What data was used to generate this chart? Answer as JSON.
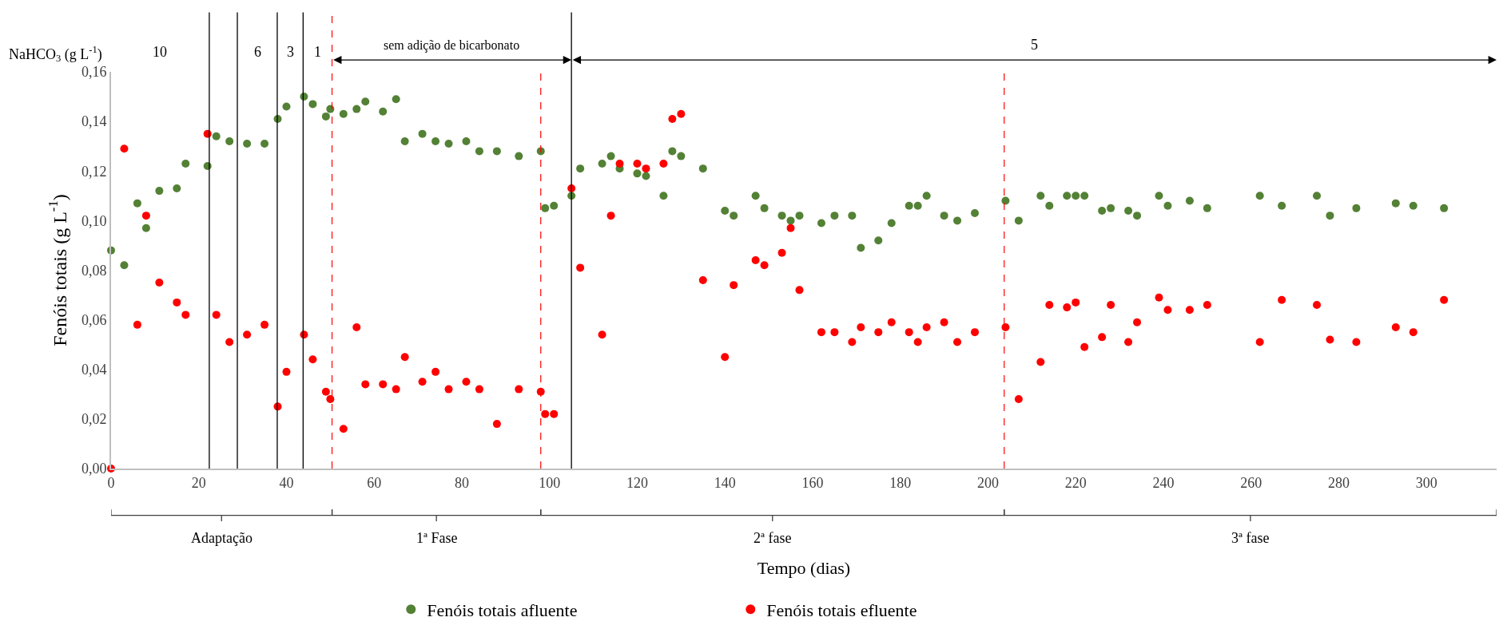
{
  "chart_data": {
    "type": "scatter",
    "xlabel": "Tempo (dias)",
    "ylabel": "Fenóis totais (g L$^{-1}$)",
    "annotations": [
      "NaHCO$_{3}$ (g L$^{-1}$)",
      "10",
      "6",
      "3",
      "1",
      "sem adição de bicarbonato",
      "5",
      "Adaptação",
      "1ª Fase",
      "2ª fase",
      "3ª fase"
    ],
    "x": [
      0,
      3,
      6,
      8,
      11,
      15,
      17,
      22,
      24,
      27,
      31,
      35,
      38,
      40,
      44,
      46,
      49,
      50,
      53,
      56,
      58,
      62,
      65,
      67,
      71,
      74,
      77,
      81,
      84,
      88,
      93,
      98,
      99,
      101,
      105,
      107,
      112,
      114,
      116,
      120,
      122,
      126,
      128,
      130,
      135,
      140,
      142,
      147,
      149,
      153,
      155,
      157,
      162,
      165,
      169,
      171,
      175,
      178,
      182,
      184,
      186,
      190,
      193,
      197,
      204,
      207,
      212,
      214,
      218,
      220,
      222,
      226,
      228,
      232,
      234,
      239,
      241,
      246,
      250,
      262,
      267,
      275,
      278,
      284,
      293,
      297,
      304
    ],
    "series": [
      {
        "name": "Fenóis totais afluente",
        "color": "#538135",
        "values": [
          0.088,
          0.082,
          0.107,
          0.097,
          0.112,
          0.113,
          0.123,
          0.122,
          0.134,
          0.132,
          0.131,
          0.131,
          0.141,
          0.146,
          0.15,
          0.147,
          0.142,
          0.145,
          0.143,
          0.145,
          0.148,
          0.144,
          0.149,
          0.132,
          0.135,
          0.132,
          0.131,
          0.132,
          0.128,
          0.128,
          0.126,
          0.128,
          0.105,
          0.106,
          0.11,
          0.121,
          0.123,
          0.126,
          0.121,
          0.119,
          0.118,
          0.11,
          0.128,
          0.126,
          0.121,
          0.104,
          0.102,
          0.11,
          0.105,
          0.102,
          0.1,
          0.102,
          0.099,
          0.102,
          0.102,
          0.089,
          0.092,
          0.099,
          0.106,
          0.106,
          0.11,
          0.102,
          0.1,
          0.103,
          0.108,
          0.1,
          0.11,
          0.106,
          0.11,
          0.11,
          0.11,
          0.104,
          0.105,
          0.104,
          0.102,
          0.11,
          0.106,
          0.108,
          0.105,
          0.11,
          0.106,
          0.11,
          0.102,
          0.105,
          0.107,
          0.106,
          0.105
        ]
      },
      {
        "name": "Fenóis totais efluente",
        "color": "#ff0000",
        "values": [
          0.0,
          0.129,
          0.058,
          0.102,
          0.075,
          0.067,
          0.062,
          0.135,
          0.062,
          0.051,
          0.054,
          0.058,
          0.025,
          0.039,
          0.054,
          0.044,
          0.031,
          0.028,
          0.016,
          0.057,
          0.034,
          0.034,
          0.032,
          0.045,
          0.035,
          0.039,
          0.032,
          0.035,
          0.032,
          0.018,
          0.032,
          0.031,
          0.022,
          0.022,
          0.113,
          0.081,
          0.054,
          0.102,
          0.123,
          0.123,
          0.121,
          0.123,
          0.141,
          0.143,
          0.076,
          0.045,
          0.074,
          0.084,
          0.082,
          0.087,
          0.097,
          0.072,
          0.055,
          0.055,
          0.051,
          0.057,
          0.055,
          0.059,
          0.055,
          0.051,
          0.057,
          0.059,
          0.051,
          0.055,
          0.057,
          0.028,
          0.043,
          0.066,
          0.065,
          0.067,
          0.049,
          0.053,
          0.066,
          0.051,
          0.059,
          0.069,
          0.064,
          0.064,
          0.066,
          0.051,
          0.068,
          0.066,
          0.052,
          0.051,
          0.057,
          0.055,
          0.068
        ]
      }
    ],
    "xlim": [
      0,
      316
    ],
    "xticks": [
      0,
      20,
      40,
      60,
      80,
      100,
      120,
      140,
      160,
      180,
      200,
      220,
      240,
      260,
      280,
      300
    ],
    "ylim": [
      0,
      0.16
    ],
    "yticks": [
      {
        "value": 0,
        "label": "0,00"
      },
      {
        "value": 0.02,
        "label": "0,02"
      },
      {
        "value": 0.04,
        "label": "0,04"
      },
      {
        "value": 0.06,
        "label": "0,06"
      },
      {
        "value": 0.08,
        "label": "0,08"
      },
      {
        "value": 0.1,
        "label": "0,10"
      },
      {
        "value": 0.12,
        "label": "0,12"
      },
      {
        "value": 0.14,
        "label": "0,14"
      },
      {
        "value": 0.16,
        "label": "0,16"
      }
    ],
    "ref_lines": [
      {
        "axis": "x",
        "value": 22.4,
        "color": "#000000",
        "line_style": "solid"
      },
      {
        "axis": "x",
        "value": 28.8,
        "color": "#000000",
        "line_style": "solid"
      },
      {
        "axis": "x",
        "value": 37.9,
        "color": "#000000",
        "line_style": "solid"
      },
      {
        "axis": "x",
        "value": 43.8,
        "color": "#000000",
        "line_style": "solid"
      },
      {
        "axis": "x",
        "value": 50.4,
        "color": "#ff0000",
        "line_style": "dashed"
      },
      {
        "axis": "x",
        "value": 98,
        "color": "#ff0000",
        "line_style": "dashed"
      },
      {
        "axis": "x",
        "value": 105,
        "color": "#000000",
        "line_style": "solid"
      },
      {
        "axis": "x",
        "value": 203.7,
        "color": "#ff0000",
        "line_style": "dashed"
      }
    ],
    "marker": "circle",
    "grid": false,
    "legend": "bottom"
  }
}
